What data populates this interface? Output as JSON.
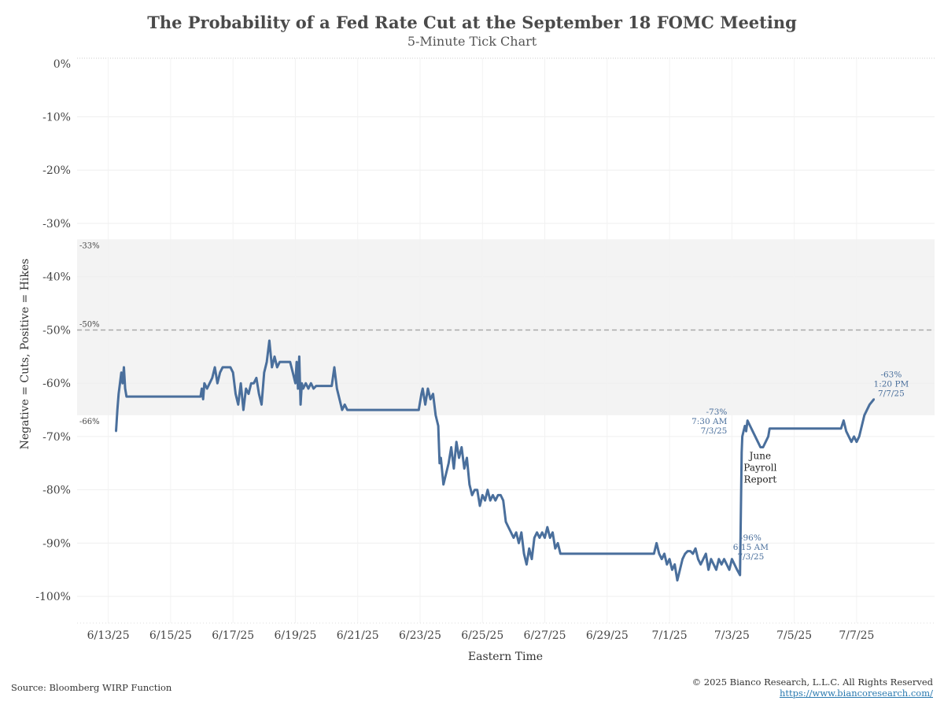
{
  "header": {
    "title": "The Probability of a Fed Rate Cut at the September 18 FOMC Meeting",
    "subtitle": "5-Minute Tick Chart"
  },
  "footer": {
    "source": "Source: Bloomberg WIRP Function",
    "copyright": "© 2025 Bianco Research, L.L.C. All Rights Reserved",
    "url": "https://www.biancoresearch.com/"
  },
  "chart_data": {
    "type": "line",
    "title": "The Probability of a Fed Rate Cut at the September 18 FOMC Meeting",
    "subtitle": "5-Minute Tick Chart",
    "xlabel": "Eastern Time",
    "ylabel": "Negative = Cuts, Positive = Hikes",
    "ylim": [
      -105,
      1
    ],
    "xlim": [
      "6/12/25",
      "7/9/25"
    ],
    "yticks": [
      0,
      -10,
      -20,
      -30,
      -40,
      -50,
      -60,
      -70,
      -80,
      -90,
      -100
    ],
    "ytick_labels": [
      "0%",
      "-10%",
      "-20%",
      "-30%",
      "-40%",
      "-50%",
      "-60%",
      "-70%",
      "-80%",
      "-90%",
      "-100%"
    ],
    "xticks": [
      "6/13/25",
      "6/15/25",
      "6/17/25",
      "6/19/25",
      "6/21/25",
      "6/23/25",
      "6/25/25",
      "6/27/25",
      "6/29/25",
      "7/1/25",
      "7/3/25",
      "7/5/25",
      "7/7/25"
    ],
    "grid": true,
    "colors": {
      "line": "#4a6f9c",
      "band": "#f3f3f3",
      "reference": "#aaaaaa",
      "annotation": "#4a6f9c"
    },
    "band": {
      "from": -33,
      "to": -66,
      "label_top": "-33%",
      "label_bottom": "-66%"
    },
    "reference_line": {
      "y": -50,
      "label": "-50%",
      "style": "dashed"
    },
    "annotations": [
      {
        "lines": [
          "-73%",
          "7:30 AM",
          "7/3/25"
        ],
        "x": "7/3/25",
        "y": -73
      },
      {
        "lines": [
          "-96%",
          "6:15 AM",
          "7/3/25"
        ],
        "x": "7/3/25",
        "y": -96
      },
      {
        "lines": [
          "-63%",
          "1:20 PM",
          "7/7/25"
        ],
        "x": "7/7/25",
        "y": -63
      },
      {
        "lines": [
          "June",
          "Payroll",
          "Report"
        ],
        "x": "7/3/25",
        "y": -81
      }
    ],
    "series": [
      {
        "points": [
          [
            "6/13/25 06:00",
            -69
          ],
          [
            "6/13/25 07:00",
            -65
          ],
          [
            "6/13/25 08:00",
            -62
          ],
          [
            "6/13/25 09:00",
            -60
          ],
          [
            "6/13/25 10:00",
            -58
          ],
          [
            "6/13/25 11:00",
            -60
          ],
          [
            "6/13/25 12:00",
            -57
          ],
          [
            "6/13/25 13:00",
            -61
          ],
          [
            "6/13/25 14:00",
            -62.5
          ],
          [
            "6/13/25 16:00",
            -62.5
          ],
          [
            "6/15/25 23:00",
            -62.5
          ],
          [
            "6/16/25 00:00",
            -61
          ],
          [
            "6/16/25 01:00",
            -63
          ],
          [
            "6/16/25 02:00",
            -60
          ],
          [
            "6/16/25 04:00",
            -61
          ],
          [
            "6/16/25 06:00",
            -60
          ],
          [
            "6/16/25 08:00",
            -59
          ],
          [
            "6/16/25 10:00",
            -57
          ],
          [
            "6/16/25 12:00",
            -60
          ],
          [
            "6/16/25 14:00",
            -58
          ],
          [
            "6/16/25 16:00",
            -57
          ],
          [
            "6/16/25 18:00",
            -57
          ],
          [
            "6/16/25 20:00",
            -57
          ],
          [
            "6/16/25 22:00",
            -57
          ],
          [
            "6/17/25 00:00",
            -58
          ],
          [
            "6/17/25 02:00",
            -62
          ],
          [
            "6/17/25 04:00",
            -64
          ],
          [
            "6/17/25 06:00",
            -60
          ],
          [
            "6/17/25 08:00",
            -65
          ],
          [
            "6/17/25 10:00",
            -61
          ],
          [
            "6/17/25 12:00",
            -62
          ],
          [
            "6/17/25 14:00",
            -60
          ],
          [
            "6/17/25 16:00",
            -60
          ],
          [
            "6/17/25 18:00",
            -59
          ],
          [
            "6/17/25 20:00",
            -62
          ],
          [
            "6/17/25 22:00",
            -64
          ],
          [
            "6/18/25 00:00",
            -58
          ],
          [
            "6/18/25 02:00",
            -56
          ],
          [
            "6/18/25 04:00",
            -52
          ],
          [
            "6/18/25 06:00",
            -57
          ],
          [
            "6/18/25 08:00",
            -55
          ],
          [
            "6/18/25 10:00",
            -57
          ],
          [
            "6/18/25 12:00",
            -56
          ],
          [
            "6/18/25 14:00",
            -56
          ],
          [
            "6/18/25 16:00",
            -56
          ],
          [
            "6/18/25 18:00",
            -56
          ],
          [
            "6/18/25 20:00",
            -56
          ],
          [
            "6/18/25 22:00",
            -58
          ],
          [
            "6/19/25 00:00",
            -60
          ],
          [
            "6/19/25 01:00",
            -56
          ],
          [
            "6/19/25 02:00",
            -61
          ],
          [
            "6/19/25 03:00",
            -55
          ],
          [
            "6/19/25 04:00",
            -64
          ],
          [
            "6/19/25 05:00",
            -60
          ],
          [
            "6/19/25 06:00",
            -61
          ],
          [
            "6/19/25 08:00",
            -60
          ],
          [
            "6/19/25 10:00",
            -61
          ],
          [
            "6/19/25 12:00",
            -60
          ],
          [
            "6/19/25 14:00",
            -61
          ],
          [
            "6/19/25 16:00",
            -60.5
          ],
          [
            "6/19/25 20:00",
            -60.5
          ],
          [
            "6/20/25 04:00",
            -60.5
          ],
          [
            "6/20/25 06:00",
            -57
          ],
          [
            "6/20/25 08:00",
            -61
          ],
          [
            "6/20/25 10:00",
            -63
          ],
          [
            "6/20/25 12:00",
            -65
          ],
          [
            "6/20/25 14:00",
            -64
          ],
          [
            "6/20/25 16:00",
            -65
          ],
          [
            "6/22/25 23:00",
            -65
          ],
          [
            "6/23/25 01:00",
            -62
          ],
          [
            "6/23/25 02:00",
            -61
          ],
          [
            "6/23/25 04:00",
            -64
          ],
          [
            "6/23/25 06:00",
            -61
          ],
          [
            "6/23/25 08:00",
            -63
          ],
          [
            "6/23/25 10:00",
            -62
          ],
          [
            "6/23/25 12:00",
            -66
          ],
          [
            "6/23/25 14:00",
            -68
          ],
          [
            "6/23/25 15:00",
            -75
          ],
          [
            "6/23/25 16:00",
            -74
          ],
          [
            "6/23/25 18:00",
            -79
          ],
          [
            "6/23/25 20:00",
            -77
          ],
          [
            "6/23/25 22:00",
            -75
          ],
          [
            "6/24/25 00:00",
            -72
          ],
          [
            "6/24/25 02:00",
            -76
          ],
          [
            "6/24/25 04:00",
            -71
          ],
          [
            "6/24/25 06:00",
            -74
          ],
          [
            "6/24/25 08:00",
            -72
          ],
          [
            "6/24/25 10:00",
            -76
          ],
          [
            "6/24/25 12:00",
            -74
          ],
          [
            "6/24/25 14:00",
            -79
          ],
          [
            "6/24/25 16:00",
            -81
          ],
          [
            "6/24/25 18:00",
            -80
          ],
          [
            "6/24/25 20:00",
            -80
          ],
          [
            "6/24/25 22:00",
            -83
          ],
          [
            "6/25/25 00:00",
            -81
          ],
          [
            "6/25/25 02:00",
            -82
          ],
          [
            "6/25/25 04:00",
            -80
          ],
          [
            "6/25/25 06:00",
            -82
          ],
          [
            "6/25/25 08:00",
            -81
          ],
          [
            "6/25/25 10:00",
            -82
          ],
          [
            "6/25/25 12:00",
            -81
          ],
          [
            "6/25/25 14:00",
            -81
          ],
          [
            "6/25/25 16:00",
            -82
          ],
          [
            "6/25/25 18:00",
            -86
          ],
          [
            "6/25/25 20:00",
            -87
          ],
          [
            "6/25/25 22:00",
            -88
          ],
          [
            "6/26/25 00:00",
            -89
          ],
          [
            "6/26/25 02:00",
            -88
          ],
          [
            "6/26/25 04:00",
            -90
          ],
          [
            "6/26/25 06:00",
            -88
          ],
          [
            "6/26/25 08:00",
            -92
          ],
          [
            "6/26/25 10:00",
            -94
          ],
          [
            "6/26/25 12:00",
            -91
          ],
          [
            "6/26/25 14:00",
            -93
          ],
          [
            "6/26/25 16:00",
            -89
          ],
          [
            "6/26/25 18:00",
            -88
          ],
          [
            "6/26/25 20:00",
            -89
          ],
          [
            "6/26/25 22:00",
            -88
          ],
          [
            "6/27/25 00:00",
            -89
          ],
          [
            "6/27/25 02:00",
            -87
          ],
          [
            "6/27/25 04:00",
            -89
          ],
          [
            "6/27/25 06:00",
            -88
          ],
          [
            "6/27/25 08:00",
            -91
          ],
          [
            "6/27/25 10:00",
            -90
          ],
          [
            "6/27/25 12:00",
            -92
          ],
          [
            "6/27/25 14:00",
            -92
          ],
          [
            "6/27/25 16:00",
            -92
          ],
          [
            "6/30/25 12:00",
            -92
          ],
          [
            "6/30/25 14:00",
            -90
          ],
          [
            "6/30/25 16:00",
            -92
          ],
          [
            "6/30/25 18:00",
            -93
          ],
          [
            "6/30/25 20:00",
            -92
          ],
          [
            "6/30/25 22:00",
            -94
          ],
          [
            "7/1/25 00:00",
            -93
          ],
          [
            "7/1/25 02:00",
            -95
          ],
          [
            "7/1/25 04:00",
            -94
          ],
          [
            "7/1/25 06:00",
            -97
          ],
          [
            "7/1/25 08:00",
            -95
          ],
          [
            "7/1/25 10:00",
            -93
          ],
          [
            "7/1/25 12:00",
            -92
          ],
          [
            "7/1/25 14:00",
            -91.5
          ],
          [
            "7/1/25 16:00",
            -91.5
          ],
          [
            "7/1/25 18:00",
            -92
          ],
          [
            "7/1/25 20:00",
            -91
          ],
          [
            "7/1/25 22:00",
            -93
          ],
          [
            "7/2/25 00:00",
            -94
          ],
          [
            "7/2/25 02:00",
            -93
          ],
          [
            "7/2/25 04:00",
            -92
          ],
          [
            "7/2/25 06:00",
            -95
          ],
          [
            "7/2/25 08:00",
            -93
          ],
          [
            "7/2/25 10:00",
            -94
          ],
          [
            "7/2/25 12:00",
            -95
          ],
          [
            "7/2/25 14:00",
            -93
          ],
          [
            "7/2/25 16:00",
            -94
          ],
          [
            "7/2/25 18:00",
            -93
          ],
          [
            "7/2/25 20:00",
            -94
          ],
          [
            "7/2/25 22:00",
            -95
          ],
          [
            "7/3/25 00:00",
            -93
          ],
          [
            "7/3/25 02:00",
            -94
          ],
          [
            "7/3/25 04:00",
            -95
          ],
          [
            "7/3/25 06:15",
            -96
          ],
          [
            "7/3/25 07:30",
            -73
          ],
          [
            "7/3/25 08:00",
            -70
          ],
          [
            "7/3/25 09:00",
            -69
          ],
          [
            "7/3/25 10:00",
            -68
          ],
          [
            "7/3/25 11:00",
            -69
          ],
          [
            "7/3/25 12:00",
            -67
          ],
          [
            "7/3/25 14:00",
            -68
          ],
          [
            "7/3/25 16:00",
            -69
          ],
          [
            "7/3/25 18:00",
            -70
          ],
          [
            "7/3/25 20:00",
            -71
          ],
          [
            "7/3/25 22:00",
            -72
          ],
          [
            "7/4/25 00:00",
            -72
          ],
          [
            "7/4/25 02:00",
            -71
          ],
          [
            "7/4/25 04:00",
            -70
          ],
          [
            "7/4/25 05:00",
            -68.5
          ],
          [
            "7/6/25 12:00",
            -68.5
          ],
          [
            "7/6/25 14:00",
            -67
          ],
          [
            "7/6/25 16:00",
            -69
          ],
          [
            "7/6/25 18:00",
            -70
          ],
          [
            "7/6/25 20:00",
            -71
          ],
          [
            "7/6/25 22:00",
            -70
          ],
          [
            "7/7/25 00:00",
            -71
          ],
          [
            "7/7/25 02:00",
            -70
          ],
          [
            "7/7/25 04:00",
            -68
          ],
          [
            "7/7/25 06:00",
            -66
          ],
          [
            "7/7/25 08:00",
            -65
          ],
          [
            "7/7/25 10:00",
            -64
          ],
          [
            "7/7/25 13:20",
            -63
          ]
        ]
      }
    ]
  }
}
